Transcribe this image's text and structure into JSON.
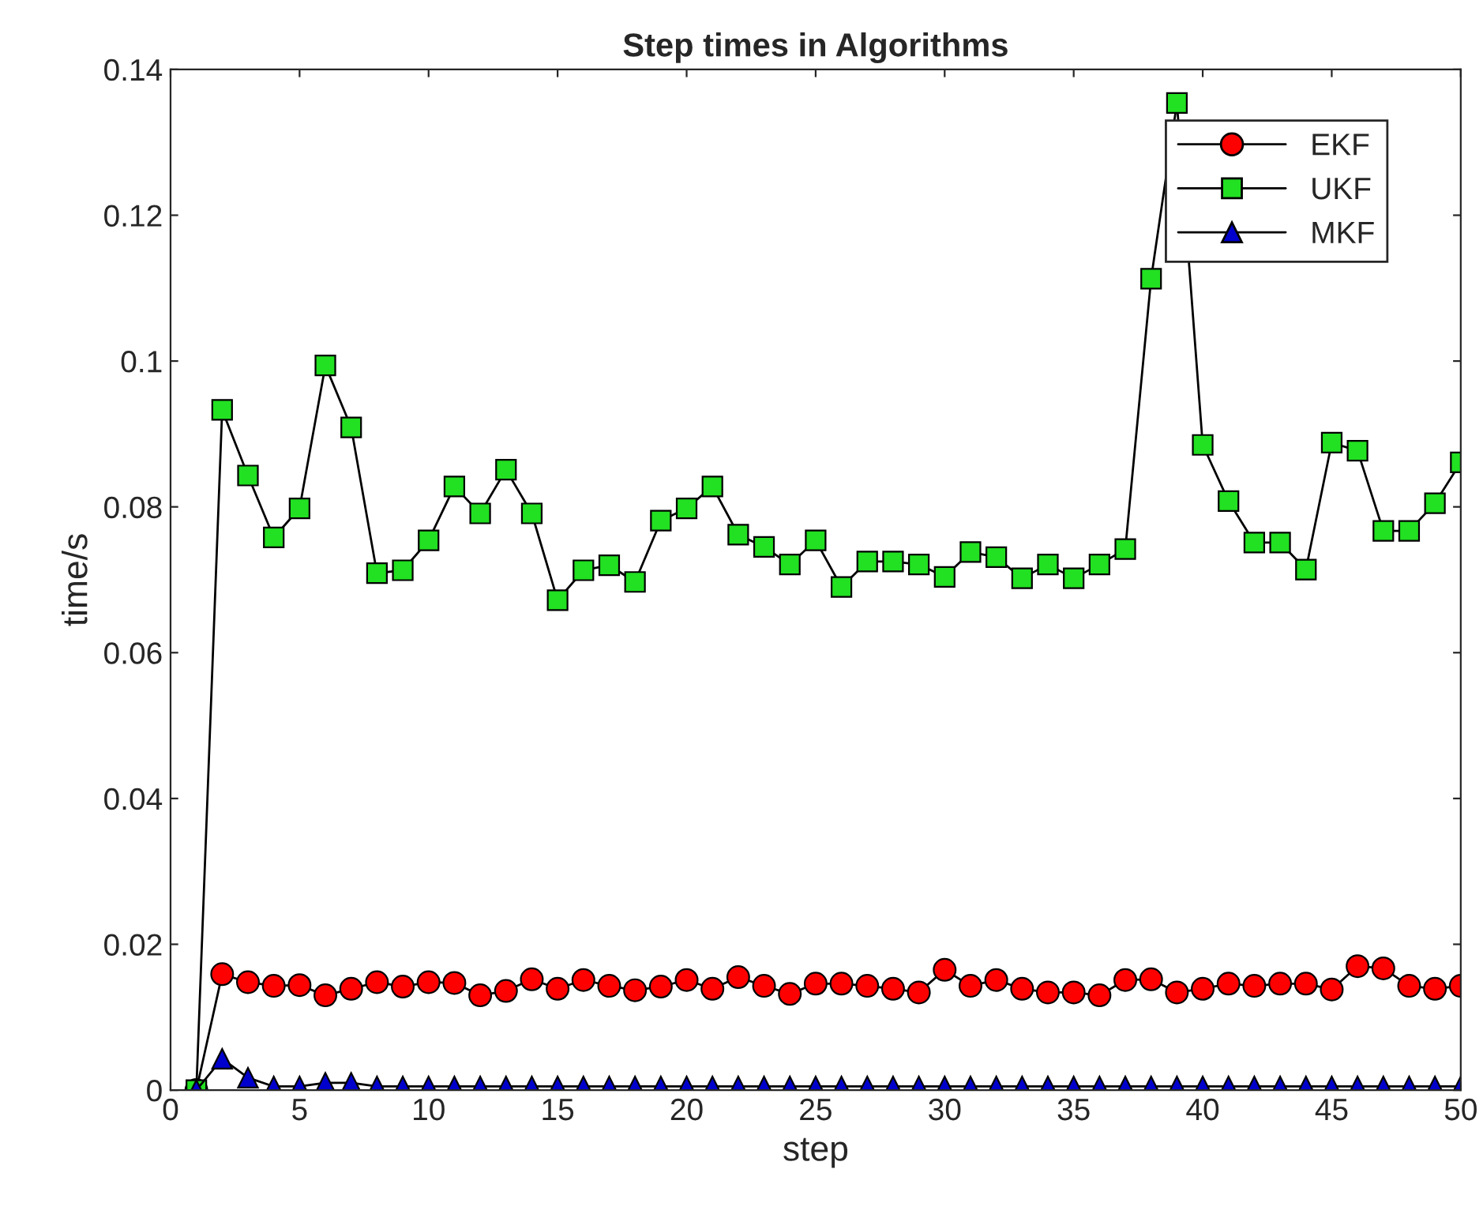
{
  "chart_data": {
    "type": "line",
    "title": "Step times in Algorithms",
    "xlabel": "step",
    "ylabel": "time/s",
    "x": [
      1,
      2,
      3,
      4,
      5,
      6,
      7,
      8,
      9,
      10,
      11,
      12,
      13,
      14,
      15,
      16,
      17,
      18,
      19,
      20,
      21,
      22,
      23,
      24,
      25,
      26,
      27,
      28,
      29,
      30,
      31,
      32,
      33,
      34,
      35,
      36,
      37,
      38,
      39,
      40,
      41,
      42,
      43,
      44,
      45,
      46,
      47,
      48,
      49,
      50
    ],
    "series": [
      {
        "name": "EKF",
        "color": "#ff0000",
        "marker": "circle",
        "values": [
          0,
          0.0159,
          0.0148,
          0.0143,
          0.0144,
          0.013,
          0.0139,
          0.0148,
          0.0142,
          0.0148,
          0.0147,
          0.013,
          0.0136,
          0.0152,
          0.0139,
          0.0151,
          0.0143,
          0.0137,
          0.0142,
          0.0151,
          0.0139,
          0.0155,
          0.0143,
          0.0132,
          0.0146,
          0.0146,
          0.0143,
          0.0139,
          0.0134,
          0.0165,
          0.0143,
          0.0151,
          0.0139,
          0.0134,
          0.0134,
          0.013,
          0.0151,
          0.0152,
          0.0134,
          0.0139,
          0.0146,
          0.0143,
          0.0146,
          0.0146,
          0.0138,
          0.017,
          0.0167,
          0.0143,
          0.0139,
          0.0143
        ]
      },
      {
        "name": "UKF",
        "color": "#22e022",
        "marker": "square",
        "values": [
          0,
          0.0933,
          0.0843,
          0.0758,
          0.0798,
          0.0994,
          0.0909,
          0.0709,
          0.0713,
          0.0754,
          0.0828,
          0.0791,
          0.0851,
          0.0791,
          0.0672,
          0.0713,
          0.072,
          0.0697,
          0.0781,
          0.0798,
          0.0828,
          0.0762,
          0.0745,
          0.0721,
          0.0754,
          0.069,
          0.0725,
          0.0725,
          0.0721,
          0.0704,
          0.0738,
          0.0731,
          0.0702,
          0.0721,
          0.0702,
          0.0721,
          0.0742,
          0.1113,
          0.1354,
          0.0885,
          0.0808,
          0.0751,
          0.0751,
          0.0714,
          0.0888,
          0.0877,
          0.0767,
          0.0767,
          0.0805,
          0.0861
        ]
      },
      {
        "name": "MKF",
        "color": "#0000cc",
        "marker": "triangle",
        "values": [
          0,
          0.0043,
          0.0017,
          0.0005,
          0.0005,
          0.001,
          0.001,
          0.0005,
          0.0005,
          0.0005,
          0.0005,
          0.0005,
          0.0005,
          0.0005,
          0.0005,
          0.0005,
          0.0005,
          0.0005,
          0.0005,
          0.0005,
          0.0005,
          0.0005,
          0.0005,
          0.0005,
          0.0005,
          0.0005,
          0.0005,
          0.0005,
          0.0005,
          0.0005,
          0.0005,
          0.0005,
          0.0005,
          0.0005,
          0.0005,
          0.0005,
          0.0005,
          0.0005,
          0.0005,
          0.0005,
          0.0005,
          0.0005,
          0.0005,
          0.0005,
          0.0005,
          0.0005,
          0.0005,
          0.0005,
          0.0005,
          0.0005
        ]
      }
    ],
    "xlim": [
      0,
      50
    ],
    "xticks": [
      0,
      5,
      10,
      15,
      20,
      25,
      30,
      35,
      40,
      45,
      50
    ],
    "ylim": [
      0,
      0.14
    ],
    "yticks": [
      0,
      0.02,
      0.04,
      0.06,
      0.08,
      0.1,
      0.12,
      0.14
    ],
    "grid": false,
    "legend": "top right",
    "line_style": "solid"
  }
}
